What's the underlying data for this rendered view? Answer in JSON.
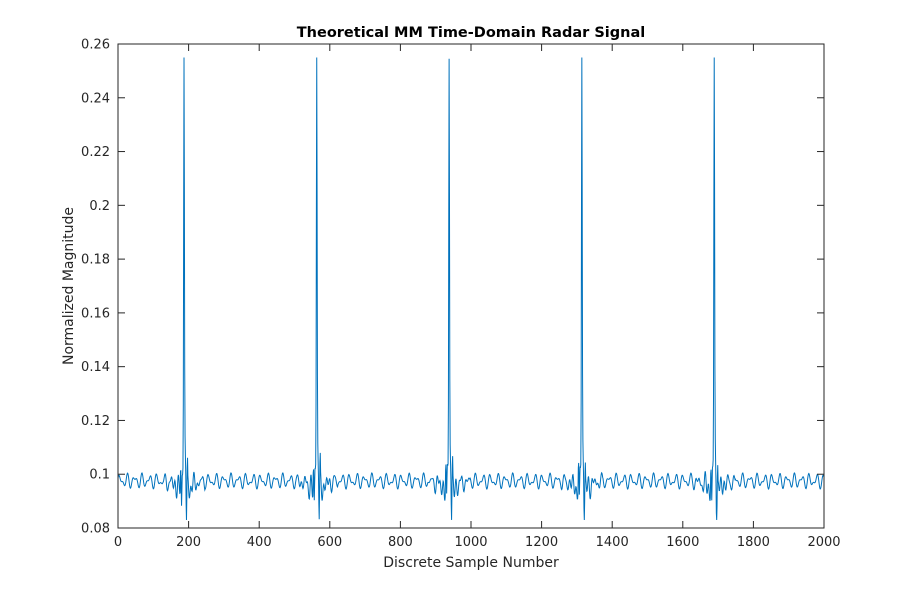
{
  "chart_data": {
    "type": "line",
    "title": "Theoretical MM Time-Domain Radar Signal",
    "xlabel": "Discrete Sample Number",
    "ylabel": "Normalized Magnitude",
    "xlim": [
      0,
      2000
    ],
    "ylim": [
      0.08,
      0.26
    ],
    "xticks": [
      0,
      200,
      400,
      600,
      800,
      1000,
      1200,
      1400,
      1600,
      1800,
      2000
    ],
    "yticks": [
      0.08,
      0.1,
      0.12,
      0.14,
      0.16,
      0.18,
      0.2,
      0.22,
      0.24,
      0.26
    ],
    "grid": false,
    "line_color": "#0072bd",
    "series": [
      {
        "peaks": [
          187,
          563,
          938,
          1314,
          1689
        ],
        "peak_value": 0.255,
        "baseline": 0.0975,
        "shoulder_value": 0.111,
        "min_value": 0.083
      }
    ]
  }
}
